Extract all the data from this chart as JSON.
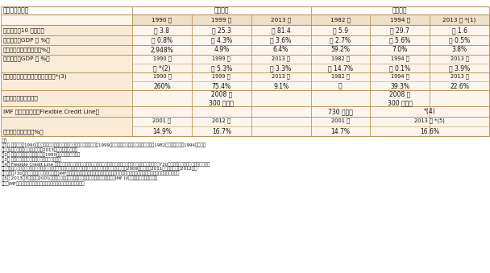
{
  "title_left": "国名／比較項目",
  "title_brazil": "ブラジル",
  "title_mexico": "メキシコ",
  "header_cols": [
    "1990 年",
    "1999 年",
    "2013 年",
    "1982 年",
    "1994 年",
    "2013 年 *(1)"
  ],
  "rows": [
    {
      "label": "経常収支（10 億ドル）",
      "type": "simple",
      "values": [
        "－ 3.8",
        "－ 25.3",
        "－ 81.4",
        "－ 5.9",
        "－ 29.7",
        "－ 1.6"
      ]
    },
    {
      "label": "経常収支（GDP 比 %）",
      "type": "simple",
      "values": [
        "－ 0.8%",
        "－ 4.3%",
        "－ 3.6%",
        "－ 2.7%",
        "－ 5.6%",
        "－ 0.5%"
      ]
    },
    {
      "label": "インフレ率　年率平均（%）",
      "type": "simple",
      "values": [
        "2,948%",
        "4.9%",
        "6.4%",
        "59.2%",
        "7.0%",
        "3.8%"
      ]
    },
    {
      "label": "財政収支（GDP 比 %）",
      "type": "double",
      "years": [
        "1990 年",
        "1999 年",
        "2013 年",
        "1982 年",
        "1994 年",
        "2013 年"
      ],
      "values": [
        "－ *(2)",
        "－ 5.3%",
        "－ 3.3%",
        "－ 14.7%",
        "－ 0.1%",
        "－ 3.9%"
      ]
    },
    {
      "label": "短期対外債務（対外貨準備高比）*(3)",
      "type": "double",
      "years": [
        "1990 年",
        "1999 年",
        "2013 年",
        "1982 年",
        "1994 年",
        "2013 年"
      ],
      "values": [
        "260%",
        "75.4%",
        "9.1%",
        "－",
        "39.3%",
        "22.6%"
      ]
    },
    {
      "label": "米国とのスワップ協定",
      "type": "swap",
      "brazil_text": "2008 年\n300 億ドル",
      "mexico_text": "2008 年\n300 億ドル"
    },
    {
      "label": "IMF からの融資枠（Flexible Credit Line）",
      "type": "imf",
      "mexico1": "730 億ドル",
      "mexico2": "*(4)"
    },
    {
      "label": "銀行自己資本比率（%）",
      "type": "bank",
      "years": [
        "2001 年",
        "2012 年",
        "2001 年",
        "2013 年 *(5)"
      ],
      "values": [
        "14.9%",
        "16.7%",
        "14.7%",
        "16.6%"
      ]
    }
  ],
  "notes_title": "備考",
  "note1a": "（1） ブラジルの1990年はハイパーインフレーションが最も激しかった年、1999年はアジア通貨危機の年。メキシコの1982年は債務危機、1994年は通貨",
  "note1b": "危機の年（過去の経済危機と2013年時点との比較）。",
  "note2": "（2） 財政収支に関するブラジルの1990年のデータは不明。",
  "note3": "（3） 世銀及び各国中銀のデータに基づき計算。",
  "note4a": "（4） Flexible Credit Line は経済実績の良好な国を国際金融危機から保護するための融資枠制度。メキシコには総額730億ドルを設定。事前審査をパスすれ",
  "note4b": "ば無条件に引き出し可能。メキシコがこれを引き出したことはないが事実上の外貨準備となり得る。2009年に新設、2011年に更新され、2012年に",
  "note4c": "総額730億ドル。ブラジルには過去にはIMFからの融資等があったが既にパリクラブ債権も含め完済し、純債権国としての地位を得ている。",
  "note5": "（5） 2013年3月現在。2001年のブラジル（ブラジル中央銀行からの数字）を除き、IMF IV条協議の資料から作成。",
  "source": "資料：IMF、世銀、メキシコ中央銀行、ブラジル中央銀行から作成。",
  "bg_color": "#fdf5ec",
  "header_bg": "#eedfc8",
  "border_color": "#b8965a",
  "text_color": "#111111",
  "label_bg": "#faebd7"
}
